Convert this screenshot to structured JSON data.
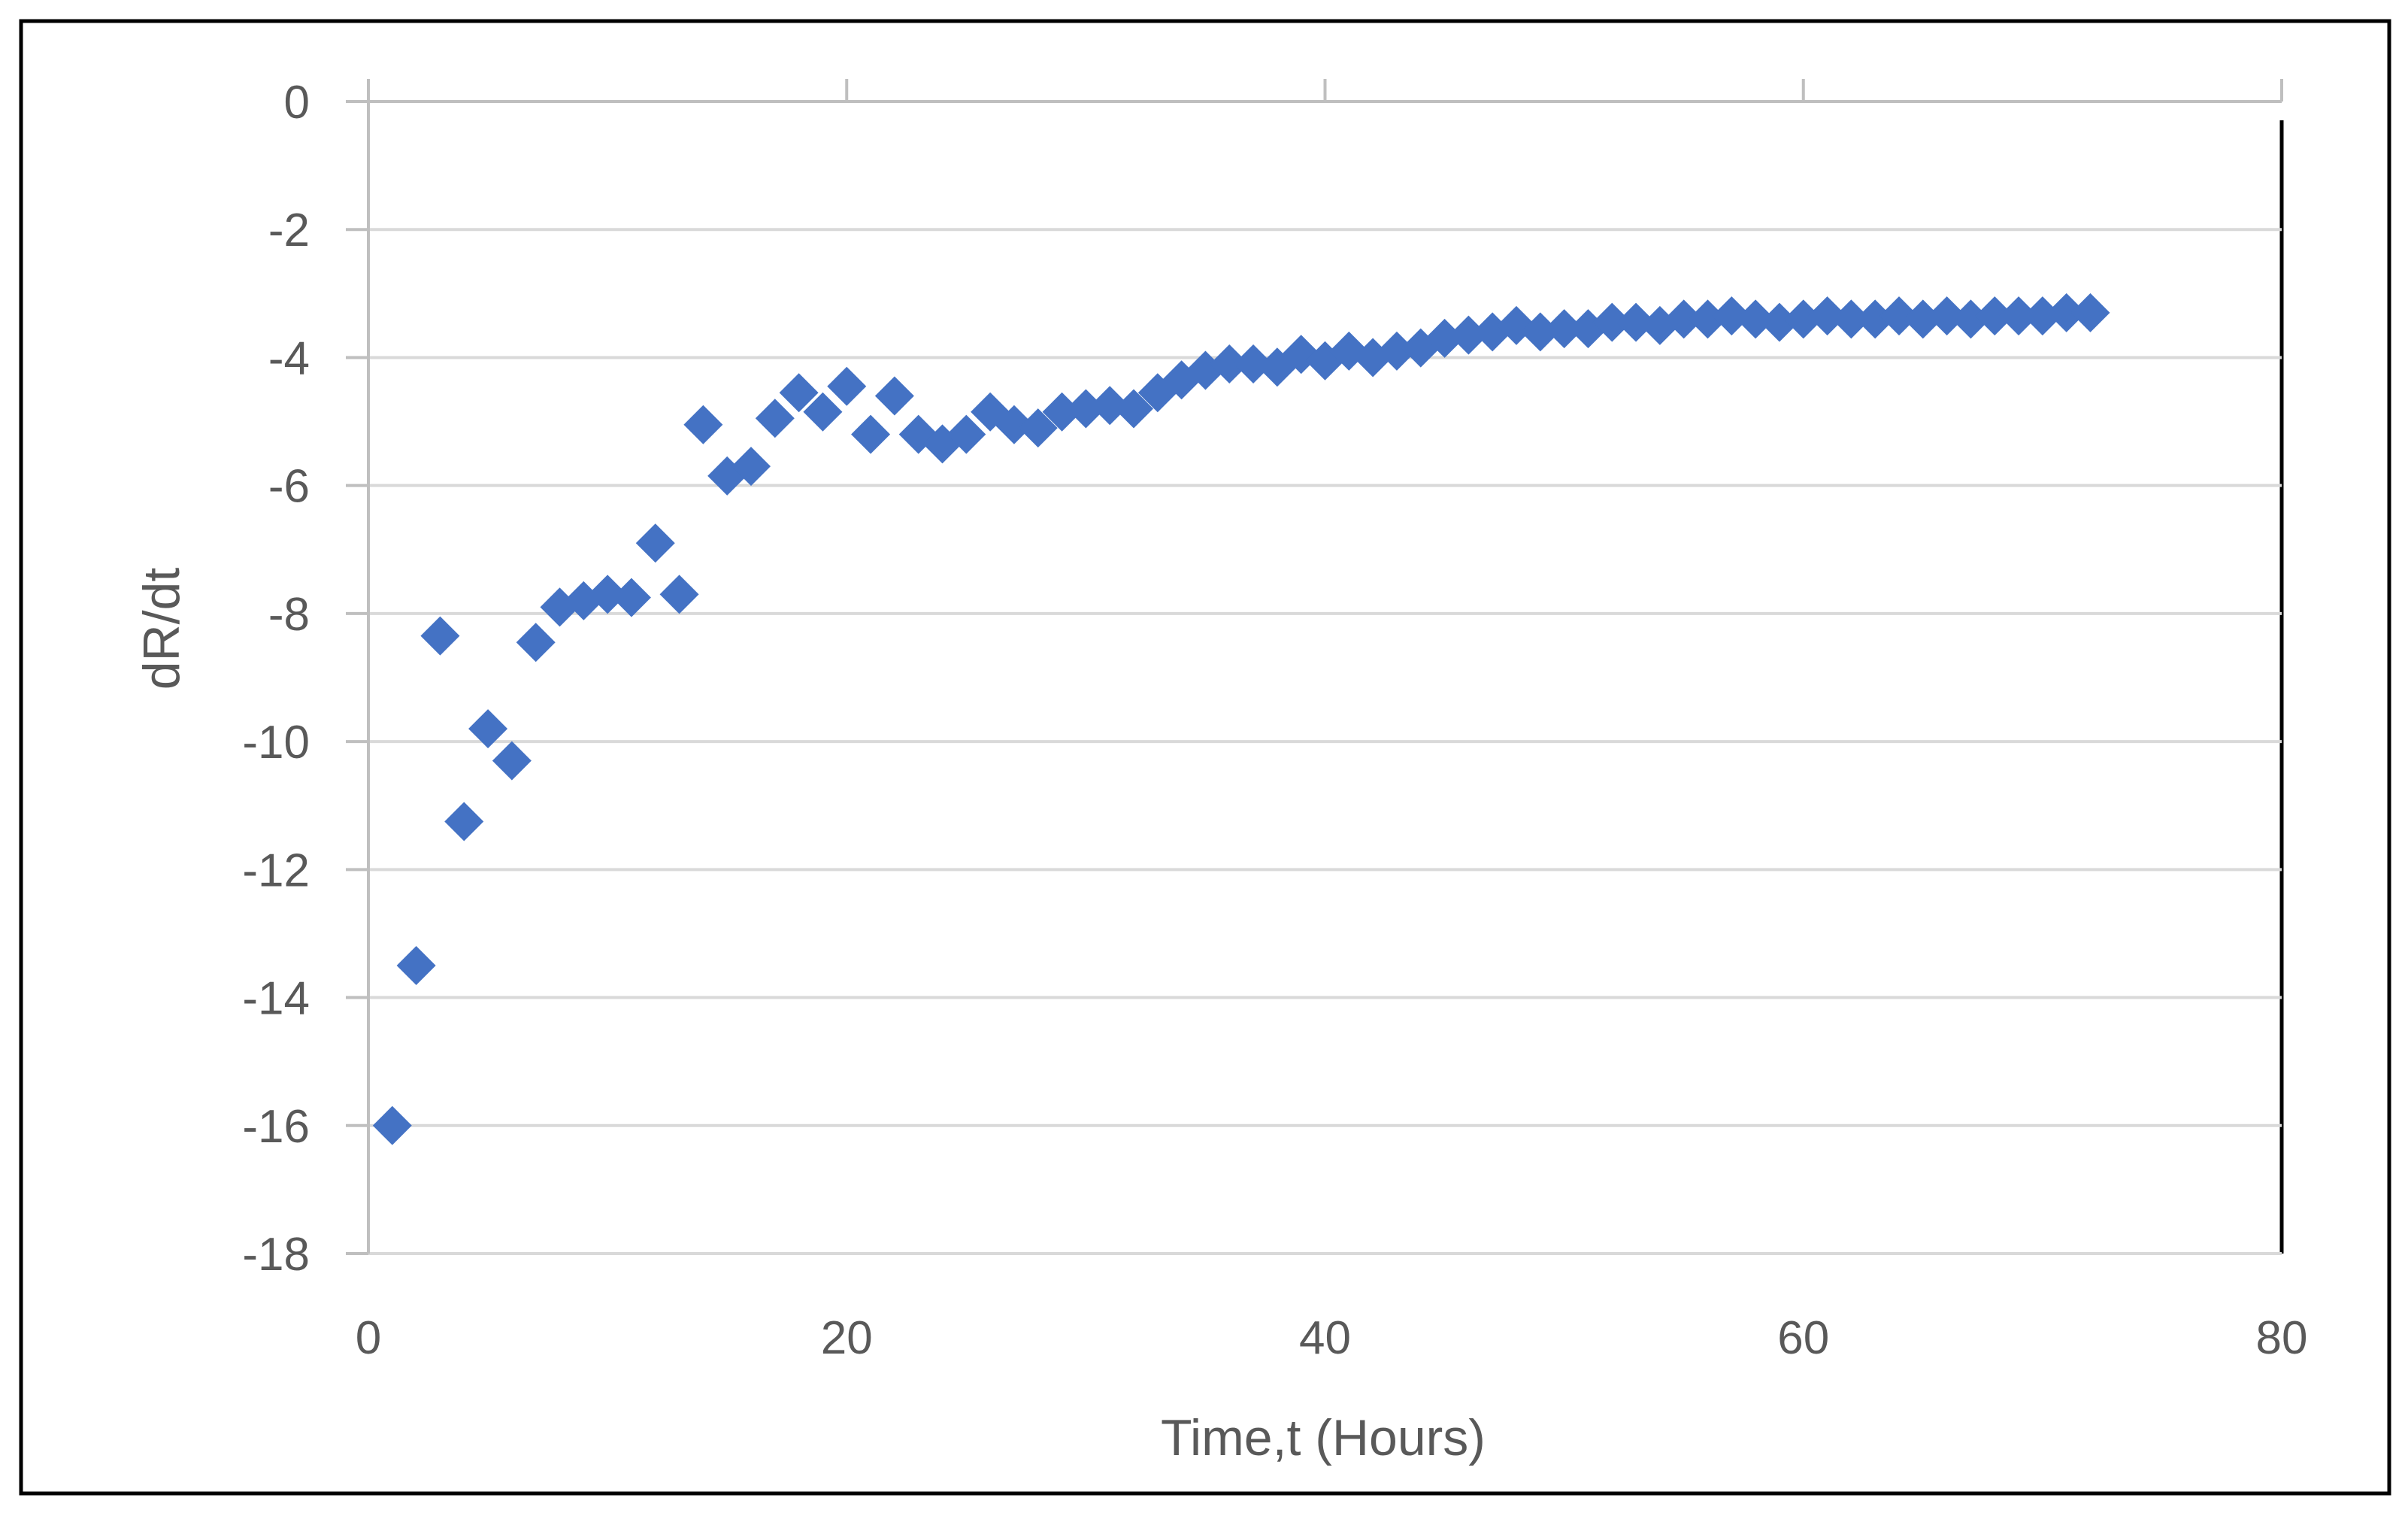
{
  "chart_data": {
    "type": "scatter",
    "title": "",
    "xlabel": "Time,t (Hours)",
    "ylabel": "dR/dt",
    "xlim": [
      0,
      80
    ],
    "ylim": [
      -18,
      0
    ],
    "x_ticks": [
      0,
      20,
      40,
      60,
      80
    ],
    "y_ticks": [
      0,
      -2,
      -4,
      -6,
      -8,
      -10,
      -12,
      -14,
      -16,
      -18
    ],
    "x_tick_labels": [
      "0",
      "20",
      "40",
      "60",
      "80"
    ],
    "y_tick_labels": [
      "0",
      "-2",
      "-4",
      "-6",
      "-8",
      "-10",
      "-12",
      "-14",
      "-16",
      "-18"
    ],
    "grid": "horizontal",
    "legend": "none",
    "marker": "diamond",
    "series": [
      {
        "name": "dR/dt",
        "color": "#4472C4",
        "points": [
          [
            1,
            -16.0
          ],
          [
            2,
            -13.5
          ],
          [
            3,
            -8.35
          ],
          [
            4,
            -11.25
          ],
          [
            5,
            -9.8
          ],
          [
            6,
            -10.3
          ],
          [
            7,
            -8.45
          ],
          [
            8,
            -7.9
          ],
          [
            9,
            -7.8
          ],
          [
            10,
            -7.7
          ],
          [
            11,
            -7.75
          ],
          [
            12,
            -6.9
          ],
          [
            13,
            -7.7
          ],
          [
            14,
            -5.05
          ],
          [
            15,
            -5.85
          ],
          [
            16,
            -5.7
          ],
          [
            17,
            -4.95
          ],
          [
            18,
            -4.55
          ],
          [
            19,
            -4.85
          ],
          [
            20,
            -4.45
          ],
          [
            21,
            -5.2
          ],
          [
            22,
            -4.6
          ],
          [
            23,
            -5.2
          ],
          [
            24,
            -5.35
          ],
          [
            25,
            -5.2
          ],
          [
            26,
            -4.85
          ],
          [
            27,
            -5.05
          ],
          [
            28,
            -5.1
          ],
          [
            29,
            -4.85
          ],
          [
            30,
            -4.8
          ],
          [
            31,
            -4.75
          ],
          [
            32,
            -4.8
          ],
          [
            33,
            -4.55
          ],
          [
            34,
            -4.35
          ],
          [
            35,
            -4.2
          ],
          [
            36,
            -4.1
          ],
          [
            37,
            -4.1
          ],
          [
            38,
            -4.15
          ],
          [
            39,
            -3.95
          ],
          [
            40,
            -4.05
          ],
          [
            41,
            -3.9
          ],
          [
            42,
            -4.0
          ],
          [
            43,
            -3.9
          ],
          [
            44,
            -3.85
          ],
          [
            45,
            -3.7
          ],
          [
            46,
            -3.65
          ],
          [
            47,
            -3.6
          ],
          [
            48,
            -3.5
          ],
          [
            49,
            -3.6
          ],
          [
            50,
            -3.55
          ],
          [
            51,
            -3.55
          ],
          [
            52,
            -3.45
          ],
          [
            53,
            -3.45
          ],
          [
            54,
            -3.5
          ],
          [
            55,
            -3.4
          ],
          [
            56,
            -3.4
          ],
          [
            57,
            -3.35
          ],
          [
            58,
            -3.4
          ],
          [
            59,
            -3.45
          ],
          [
            60,
            -3.4
          ],
          [
            61,
            -3.35
          ],
          [
            62,
            -3.4
          ],
          [
            63,
            -3.4
          ],
          [
            64,
            -3.35
          ],
          [
            65,
            -3.4
          ],
          [
            66,
            -3.35
          ],
          [
            67,
            -3.4
          ],
          [
            68,
            -3.35
          ],
          [
            69,
            -3.35
          ],
          [
            70,
            -3.35
          ],
          [
            71,
            -3.3
          ],
          [
            72,
            -3.3
          ]
        ]
      }
    ]
  }
}
